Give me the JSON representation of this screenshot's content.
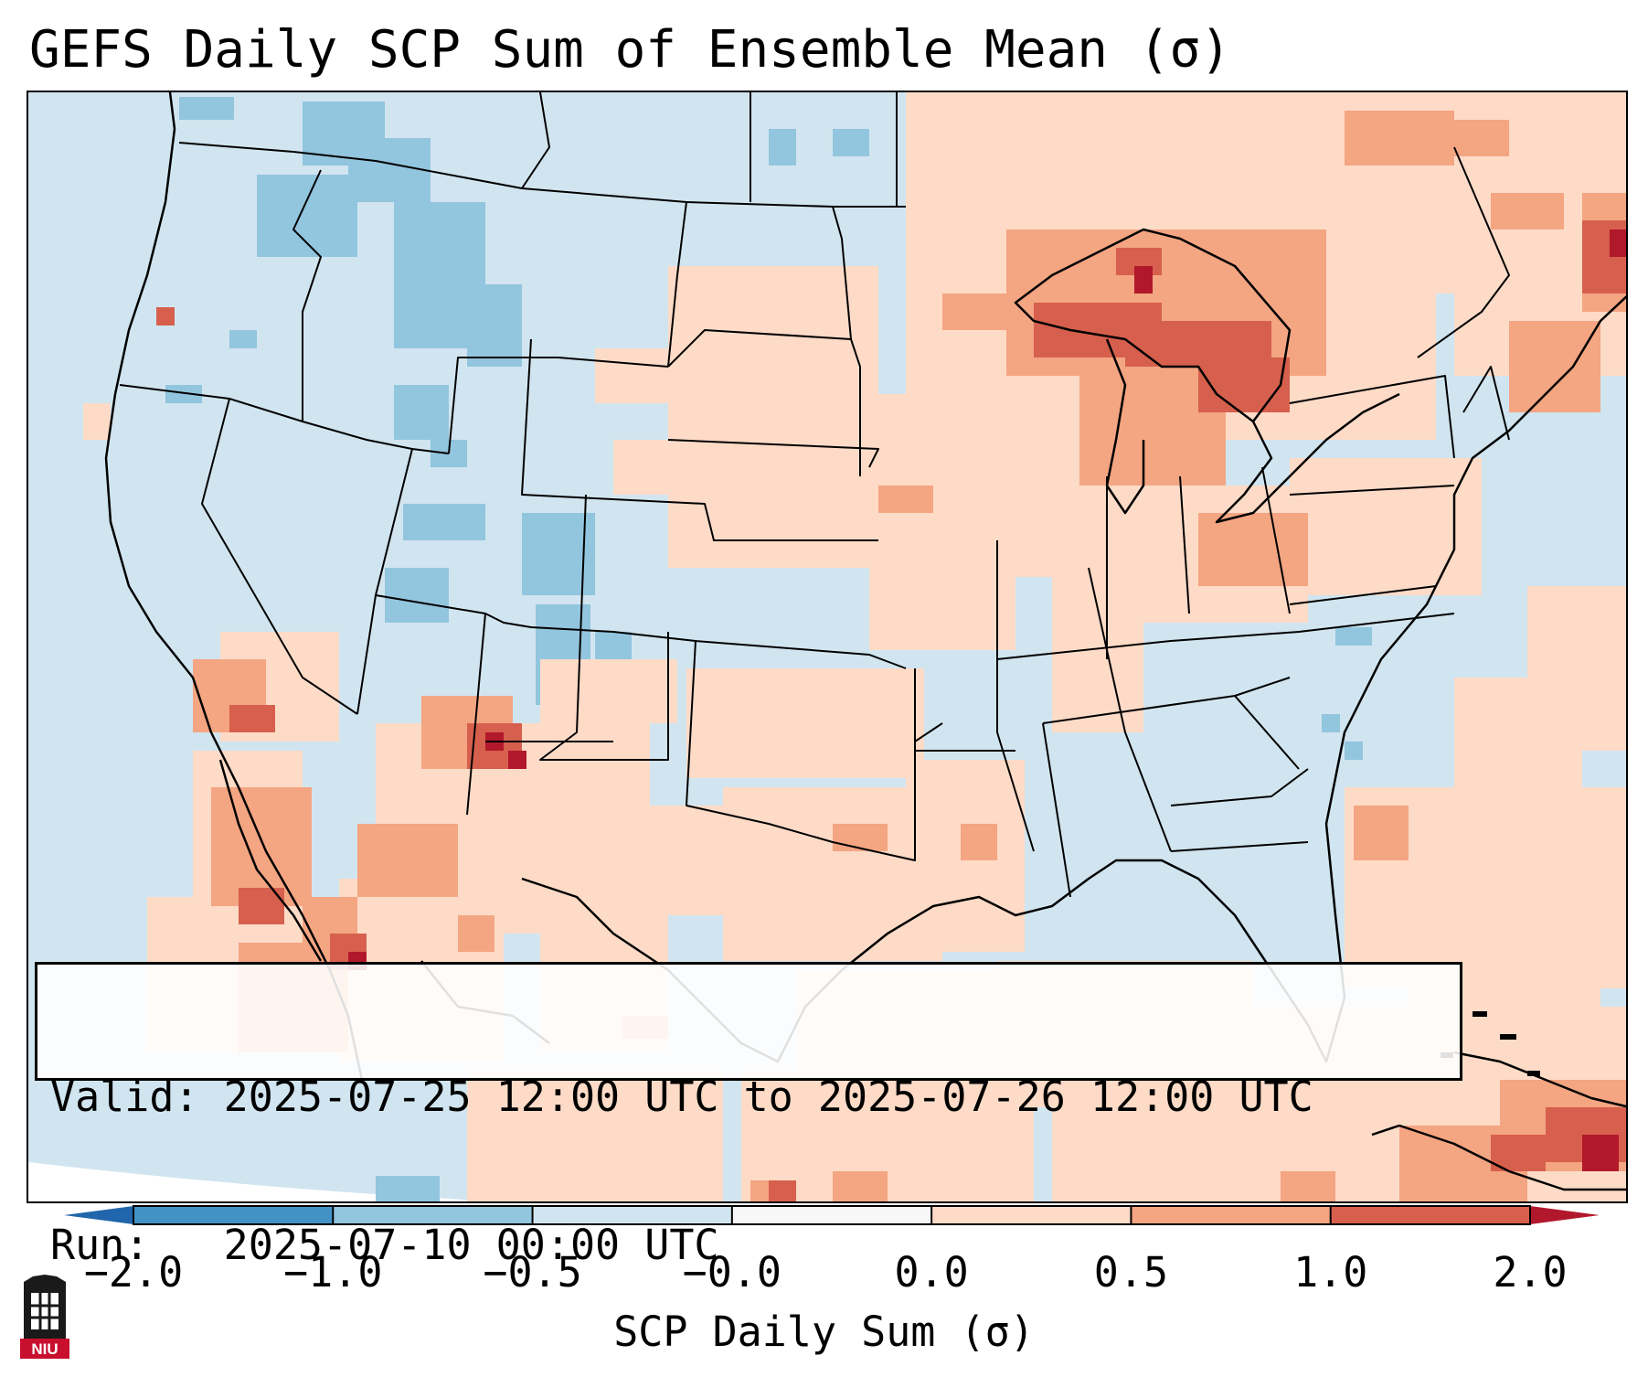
{
  "title": "GEFS Daily SCP Sum of Ensemble Mean (σ)",
  "info": {
    "valid_label": "Valid:",
    "valid_value": "2025-07-25 12:00 UTC to 2025-07-26 12:00 UTC",
    "run_label": "Run:",
    "run_value": "2025-07-10 00:00 UTC"
  },
  "colorbar": {
    "label": "SCP Daily Sum (σ)",
    "ticks": [
      "−2.0",
      "−1.0",
      "−0.5",
      "−0.0",
      "0.0",
      "0.5",
      "1.0",
      "2.0"
    ],
    "bins": [
      {
        "from": -2.0,
        "to": -1.0,
        "color": "#4292c6"
      },
      {
        "from": -1.0,
        "to": -0.5,
        "color": "#92c5de"
      },
      {
        "from": -0.5,
        "to": 0.0,
        "color": "#d1e5f0"
      },
      {
        "from": 0.0,
        "to": 0.0,
        "color": "#f7f7f7"
      },
      {
        "from": 0.0,
        "to": 0.5,
        "color": "#fddbc7"
      },
      {
        "from": 0.5,
        "to": 1.0,
        "color": "#f4a582"
      },
      {
        "from": 1.0,
        "to": 2.0,
        "color": "#d6604d"
      }
    ],
    "extend_low_color": "#2166ac",
    "extend_high_color": "#b2182b"
  },
  "logo": {
    "text": "NIU",
    "color": "#c8102e"
  }
}
